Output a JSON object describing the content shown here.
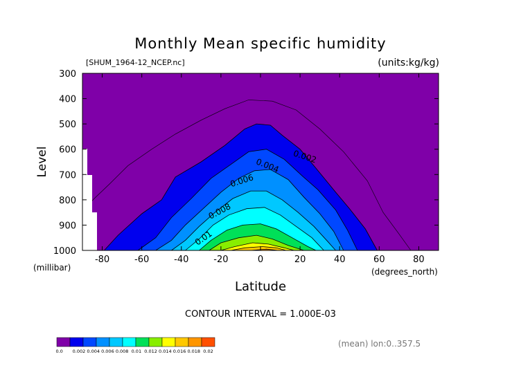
{
  "chart_data": {
    "type": "contour",
    "title": "Monthly Mean specific humidity",
    "subtitle_left": "[SHUM_1964-12_NCEP.nc]",
    "subtitle_right": "(units:kg/kg)",
    "xlabel": "Latitude",
    "xunit": "(degrees_north)",
    "ylabel": "Level",
    "yunit": "(millibar)",
    "xlim": [
      -90,
      90
    ],
    "ylim": [
      1000,
      300
    ],
    "x_ticks": [
      -80,
      -60,
      -40,
      -20,
      0,
      20,
      40,
      60,
      80
    ],
    "x_tick_labels": [
      "-80",
      "-60",
      "-40",
      "-20",
      "0",
      "20",
      "40",
      "60",
      "80"
    ],
    "y_ticks": [
      300,
      400,
      500,
      600,
      700,
      800,
      900,
      1000
    ],
    "y_tick_labels": [
      "300",
      "400",
      "500",
      "600",
      "700",
      "800",
      "900",
      "1000"
    ],
    "contour_interval_text": "CONTOUR INTERVAL = 1.000E-03",
    "contour_labels": [
      {
        "text": "0.002",
        "lat": 22,
        "level": 640
      },
      {
        "text": "0.004",
        "lat": 3,
        "level": 675
      },
      {
        "text": "0.006",
        "lat": -9,
        "level": 735
      },
      {
        "text": "0.008",
        "lat": -20,
        "level": 855
      },
      {
        "text": "0.01",
        "lat": -28,
        "level": 960
      }
    ],
    "levels": [
      0,
      0.002,
      0.004,
      0.006,
      0.008,
      0.01,
      0.012,
      0.014,
      0.016,
      0.018,
      0.02
    ],
    "colorbar_colors": [
      "#7f00a8",
      "#0000ee",
      "#0048ff",
      "#0090ff",
      "#00c8ff",
      "#00ffff",
      "#00e058",
      "#88ee00",
      "#ffff00",
      "#ffc800",
      "#ff9600",
      "#ff5000",
      "#ff0000"
    ],
    "colorbar_tick_labels": [
      "0.0",
      "0.002",
      "0.004",
      "0.006",
      "0.008",
      "0.01",
      "0.012",
      "0.014",
      "0.016",
      "0.018",
      "0.02"
    ],
    "footer_right": "(mean) lon:0..357.5"
  }
}
